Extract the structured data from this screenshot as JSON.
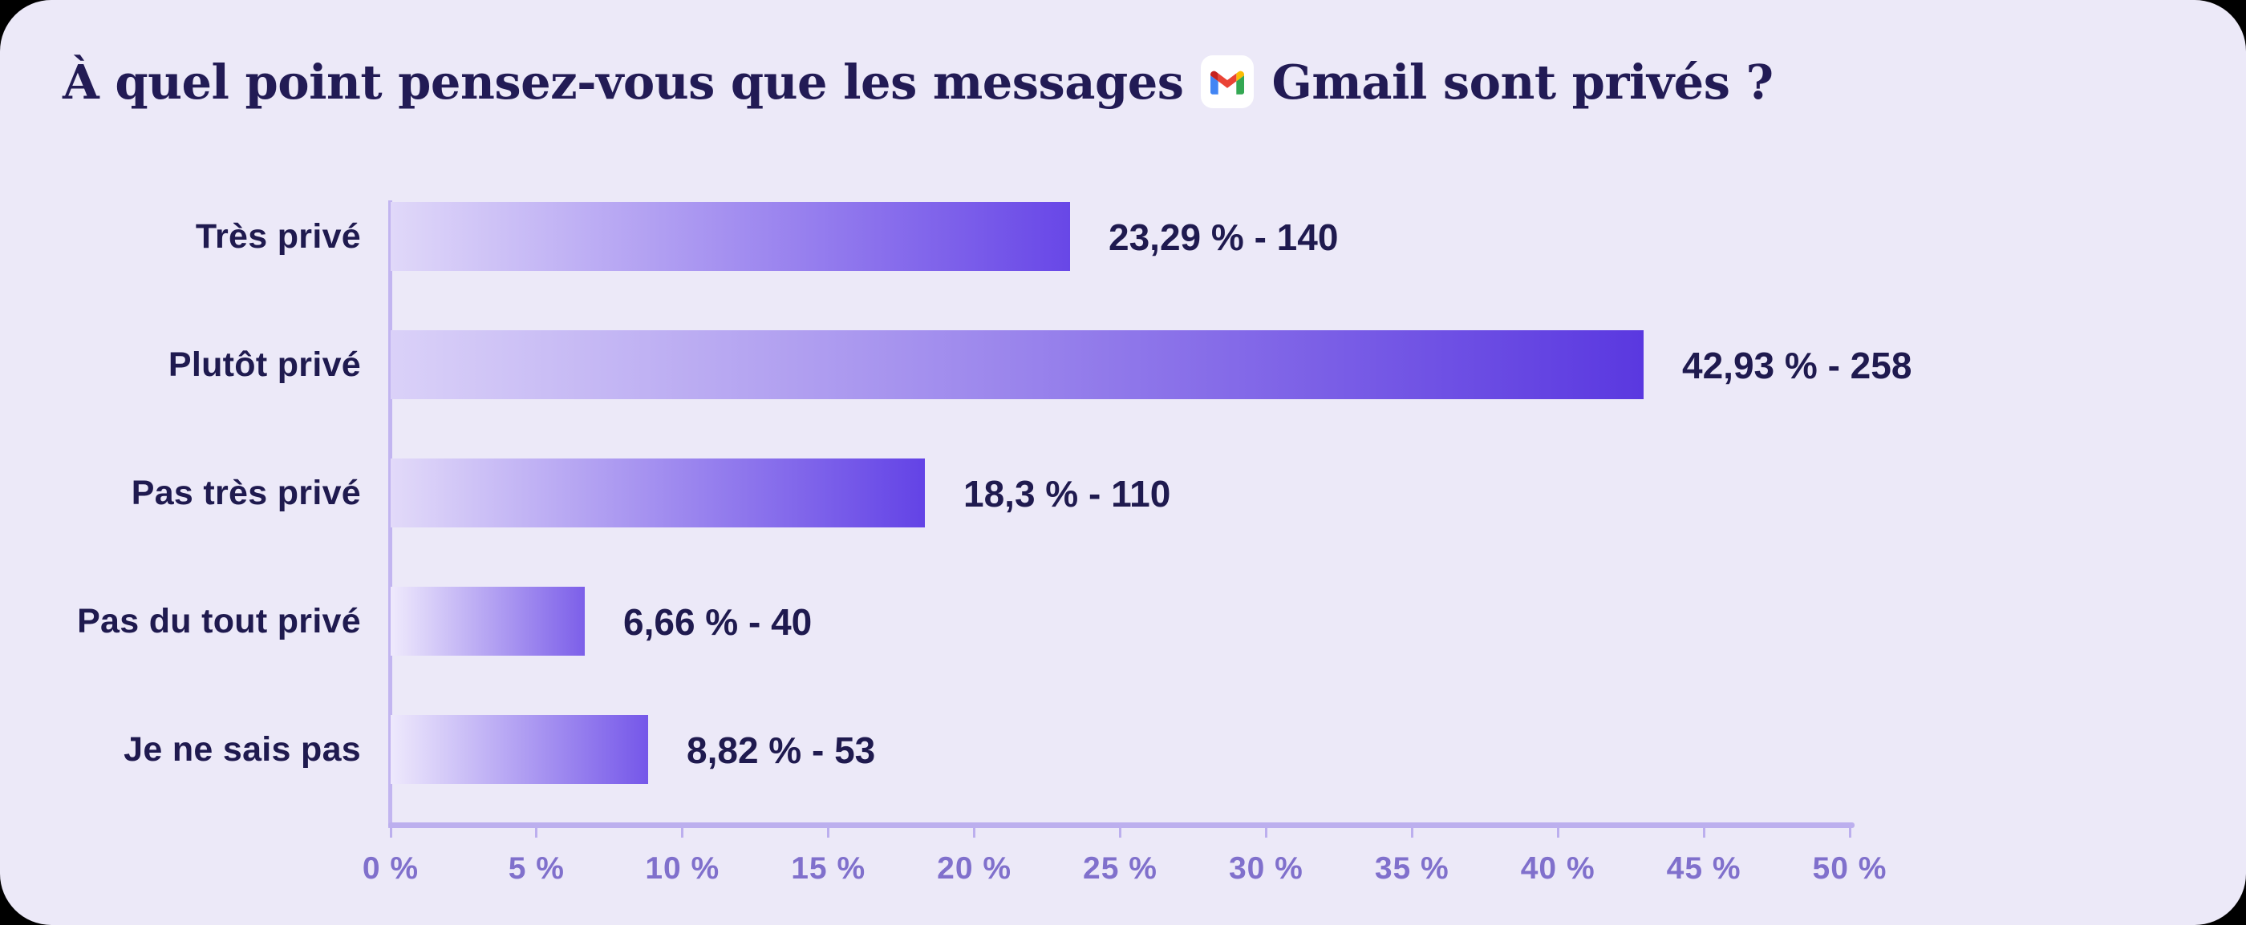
{
  "title": {
    "part1": "À quel point pensez-vous que les messages",
    "part2": "Gmail sont privés ?"
  },
  "colors": {
    "outer_background": "#000000",
    "card_background": "#ECE9F8",
    "title_text": "#221B55",
    "label_text": "#1F1A4F",
    "tick_text": "#8070CC",
    "axis_line": "#BCAFEE"
  },
  "gmail_icon": {
    "red": "#EA4335",
    "dark_red": "#C5221F",
    "blue": "#4285F4",
    "green": "#34A853",
    "yellow": "#FBBC04"
  },
  "chart_data": {
    "type": "bar",
    "orientation": "horizontal",
    "title": "À quel point pensez-vous que les messages Gmail sont privés ?",
    "categories": [
      "Très privé",
      "Plutôt privé",
      "Pas très privé",
      "Pas du tout privé",
      "Je ne sais pas"
    ],
    "values": [
      23.29,
      42.93,
      18.3,
      6.66,
      8.82
    ],
    "counts": [
      140,
      258,
      110,
      40,
      53
    ],
    "value_labels": [
      "23,29 % - 140",
      "42,93 % - 258",
      "18,3 % - 110",
      "6,66 % - 40",
      "8,82 % - 53"
    ],
    "xlim": [
      0,
      50
    ],
    "x_tick_labels": [
      "0 %",
      "5 %",
      "10 %",
      "15 %",
      "20 %",
      "25 %",
      "30 %",
      "35 %",
      "40 %",
      "45 %",
      "50 %"
    ],
    "grid": false,
    "legend": false,
    "bar_gradients": [
      {
        "from": "#E0D8F9",
        "to": "#6847E7"
      },
      {
        "from": "#DAD1F8",
        "to": "#5A38E0"
      },
      {
        "from": "#E2DAF9",
        "to": "#6343E6"
      },
      {
        "from": "#EFEAFC",
        "to": "#7C5FE9"
      },
      {
        "from": "#EEE9FC",
        "to": "#7557E9"
      }
    ]
  }
}
